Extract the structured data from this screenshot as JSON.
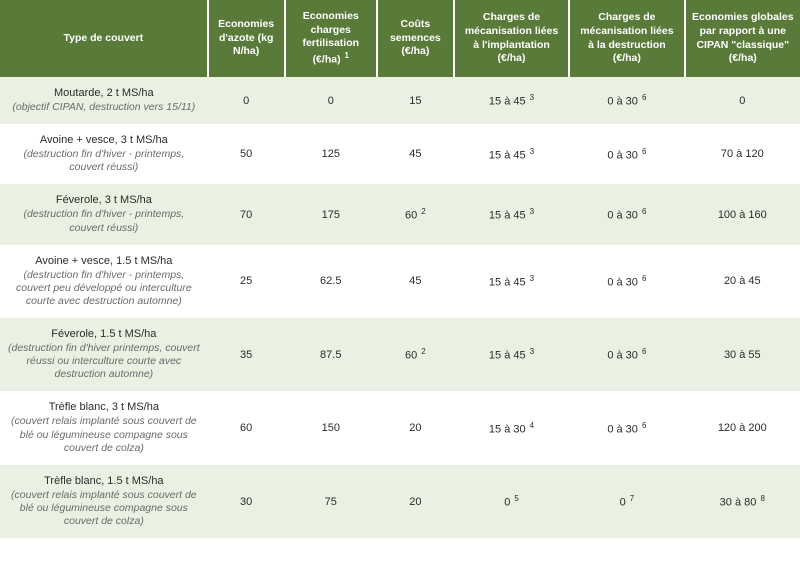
{
  "table": {
    "header_background": "#5a7a3a",
    "header_text_color": "#ffffff",
    "row_odd_background": "#eaf0e2",
    "row_even_background": "#ffffff",
    "columns": [
      {
        "label": "Type de couvert",
        "footnote": ""
      },
      {
        "label": "Economies d'azote (kg N/ha)",
        "footnote": ""
      },
      {
        "label": "Economies charges fertilisation (€/ha)",
        "footnote": "1"
      },
      {
        "label": "Coûts semences (€/ha)",
        "footnote": ""
      },
      {
        "label": "Charges de mécanisation liées à l'implantation (€/ha)",
        "footnote": ""
      },
      {
        "label": "Charges de mécanisation liées à la destruction (€/ha)",
        "footnote": ""
      },
      {
        "label": "Economies globales par rapport à une CIPAN \"classique\" (€/ha)",
        "footnote": ""
      }
    ],
    "rows": [
      {
        "cover_title": "Moutarde, 2 t MS/ha",
        "cover_desc": "(objectif CIPAN, destruction vers 15/11)",
        "econ_azote": "0",
        "econ_fert": "0",
        "cout_sem": {
          "value": "15",
          "fn": ""
        },
        "impl": {
          "value": "15 à 45",
          "fn": "3"
        },
        "destr": {
          "value": "0 à 30",
          "fn": "6"
        },
        "global": {
          "value": "0",
          "fn": ""
        }
      },
      {
        "cover_title": "Avoine + vesce, 3 t MS/ha",
        "cover_desc": "(destruction fin d'hiver - printemps, couvert réussi)",
        "econ_azote": "50",
        "econ_fert": "125",
        "cout_sem": {
          "value": "45",
          "fn": ""
        },
        "impl": {
          "value": "15 à 45",
          "fn": "3"
        },
        "destr": {
          "value": "0 à 30",
          "fn": "6"
        },
        "global": {
          "value": "70 à 120",
          "fn": ""
        }
      },
      {
        "cover_title": "Féverole, 3 t MS/ha",
        "cover_desc": "(destruction fin d'hiver - printemps, couvert réussi)",
        "econ_azote": "70",
        "econ_fert": "175",
        "cout_sem": {
          "value": "60",
          "fn": "2"
        },
        "impl": {
          "value": "15 à 45",
          "fn": "3"
        },
        "destr": {
          "value": "0 à 30",
          "fn": "6"
        },
        "global": {
          "value": "100 à 160",
          "fn": ""
        }
      },
      {
        "cover_title": "Avoine + vesce, 1.5 t MS/ha",
        "cover_desc": "(destruction fin d'hiver - printemps, couvert peu développé ou interculture courte avec destruction automne)",
        "econ_azote": "25",
        "econ_fert": "62.5",
        "cout_sem": {
          "value": "45",
          "fn": ""
        },
        "impl": {
          "value": "15 à 45",
          "fn": "3"
        },
        "destr": {
          "value": "0 à 30",
          "fn": "6"
        },
        "global": {
          "value": "20 à 45",
          "fn": ""
        }
      },
      {
        "cover_title": "Féverole, 1.5 t MS/ha",
        "cover_desc": "(destruction fin d'hiver printemps, couvert réussi ou interculture courte avec destruction automne)",
        "econ_azote": "35",
        "econ_fert": "87.5",
        "cout_sem": {
          "value": "60",
          "fn": "2"
        },
        "impl": {
          "value": "15 à 45",
          "fn": "3"
        },
        "destr": {
          "value": "0 à 30",
          "fn": "6"
        },
        "global": {
          "value": "30 à 55",
          "fn": ""
        }
      },
      {
        "cover_title": "Trèfle blanc, 3 t MS/ha",
        "cover_desc": "(couvert relais implanté sous couvert de blé ou légumineuse compagne sous couvert de colza)",
        "econ_azote": "60",
        "econ_fert": "150",
        "cout_sem": {
          "value": "20",
          "fn": ""
        },
        "impl": {
          "value": "15 à 30",
          "fn": "4"
        },
        "destr": {
          "value": "0 à 30",
          "fn": "6"
        },
        "global": {
          "value": "120 à 200",
          "fn": ""
        }
      },
      {
        "cover_title": "Trèfle blanc, 1.5 t MS/ha",
        "cover_desc": "(couvert relais implanté sous couvert de blé ou légumineuse compagne sous couvert de colza)",
        "econ_azote": "30",
        "econ_fert": "75",
        "cout_sem": {
          "value": "20",
          "fn": ""
        },
        "impl": {
          "value": "0",
          "fn": "5"
        },
        "destr": {
          "value": "0",
          "fn": "7"
        },
        "global": {
          "value": "30 à 80",
          "fn": "8"
        }
      }
    ]
  }
}
